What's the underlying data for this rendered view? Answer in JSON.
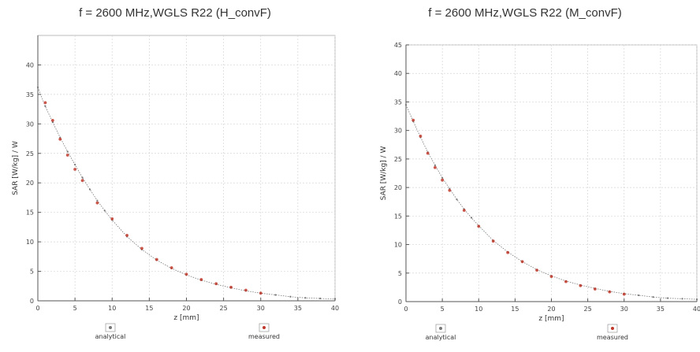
{
  "chart_data": [
    {
      "type": "scatter",
      "title": "f = 2600 MHz,WGLS R22 (H_convF)",
      "xlabel": "z [mm]",
      "ylabel": "SAR [W/kg] / W",
      "xlim": [
        0,
        40
      ],
      "ylim": [
        0,
        45
      ],
      "xticks": [
        0,
        5,
        10,
        15,
        20,
        25,
        30,
        35,
        40
      ],
      "yticks": [
        0,
        5,
        10,
        15,
        20,
        25,
        30,
        35,
        40
      ],
      "legend": [
        "analytical",
        "measured"
      ],
      "legend_position": "bottom",
      "grid": true,
      "series": [
        {
          "name": "analytical",
          "color": "#777777",
          "x": [
            0,
            1,
            2,
            3,
            4,
            5,
            6,
            7,
            8,
            9,
            10,
            12,
            14,
            16,
            18,
            20,
            22,
            24,
            26,
            28,
            30,
            32,
            34,
            36,
            38,
            40
          ],
          "y": [
            36.2,
            33.0,
            30.3,
            27.7,
            25.3,
            23.1,
            20.9,
            18.9,
            17.0,
            15.3,
            13.7,
            10.9,
            8.7,
            6.9,
            5.5,
            4.4,
            3.5,
            2.8,
            2.2,
            1.7,
            1.3,
            1.0,
            0.7,
            0.5,
            0.4,
            0.3
          ]
        },
        {
          "name": "measured",
          "color": "#c0392b",
          "x": [
            1,
            2,
            3,
            4,
            5,
            6,
            8,
            10,
            12,
            14,
            16,
            18,
            20,
            22,
            24,
            26,
            28,
            30
          ],
          "y": [
            33.6,
            30.6,
            27.4,
            24.7,
            22.3,
            20.4,
            16.6,
            13.9,
            11.1,
            8.9,
            7.0,
            5.6,
            4.5,
            3.6,
            2.9,
            2.3,
            1.8,
            1.3
          ]
        }
      ]
    },
    {
      "type": "scatter",
      "title": "f = 2600 MHz,WGLS R22 (M_convF)",
      "xlabel": "z [mm]",
      "ylabel": "SAR [W/kg] / W",
      "xlim": [
        0,
        40
      ],
      "ylim": [
        0,
        45
      ],
      "xticks": [
        0,
        5,
        10,
        15,
        20,
        25,
        30,
        35,
        40
      ],
      "yticks": [
        0,
        5,
        10,
        15,
        20,
        25,
        30,
        35,
        40,
        45
      ],
      "legend": [
        "analytical",
        "measured"
      ],
      "legend_position": "bottom",
      "grid": true,
      "series": [
        {
          "name": "analytical",
          "color": "#777777",
          "x": [
            0,
            1,
            2,
            3,
            4,
            5,
            6,
            7,
            8,
            9,
            10,
            12,
            14,
            16,
            18,
            20,
            22,
            24,
            26,
            28,
            30,
            32,
            34,
            36,
            38,
            40
          ],
          "y": [
            34.5,
            31.6,
            28.8,
            26.2,
            23.9,
            21.7,
            19.8,
            17.9,
            16.2,
            14.7,
            13.3,
            10.7,
            8.7,
            7.0,
            5.6,
            4.5,
            3.6,
            2.9,
            2.3,
            1.8,
            1.4,
            1.1,
            0.8,
            0.6,
            0.5,
            0.4
          ]
        },
        {
          "name": "measured",
          "color": "#c0392b",
          "x": [
            1,
            2,
            3,
            4,
            5,
            6,
            8,
            10,
            12,
            14,
            16,
            18,
            20,
            22,
            24,
            26,
            28,
            30
          ],
          "y": [
            31.8,
            29.0,
            26.0,
            23.5,
            21.3,
            19.5,
            16.0,
            13.2,
            10.6,
            8.6,
            7.0,
            5.5,
            4.4,
            3.5,
            2.8,
            2.2,
            1.7,
            1.3
          ]
        }
      ]
    }
  ]
}
